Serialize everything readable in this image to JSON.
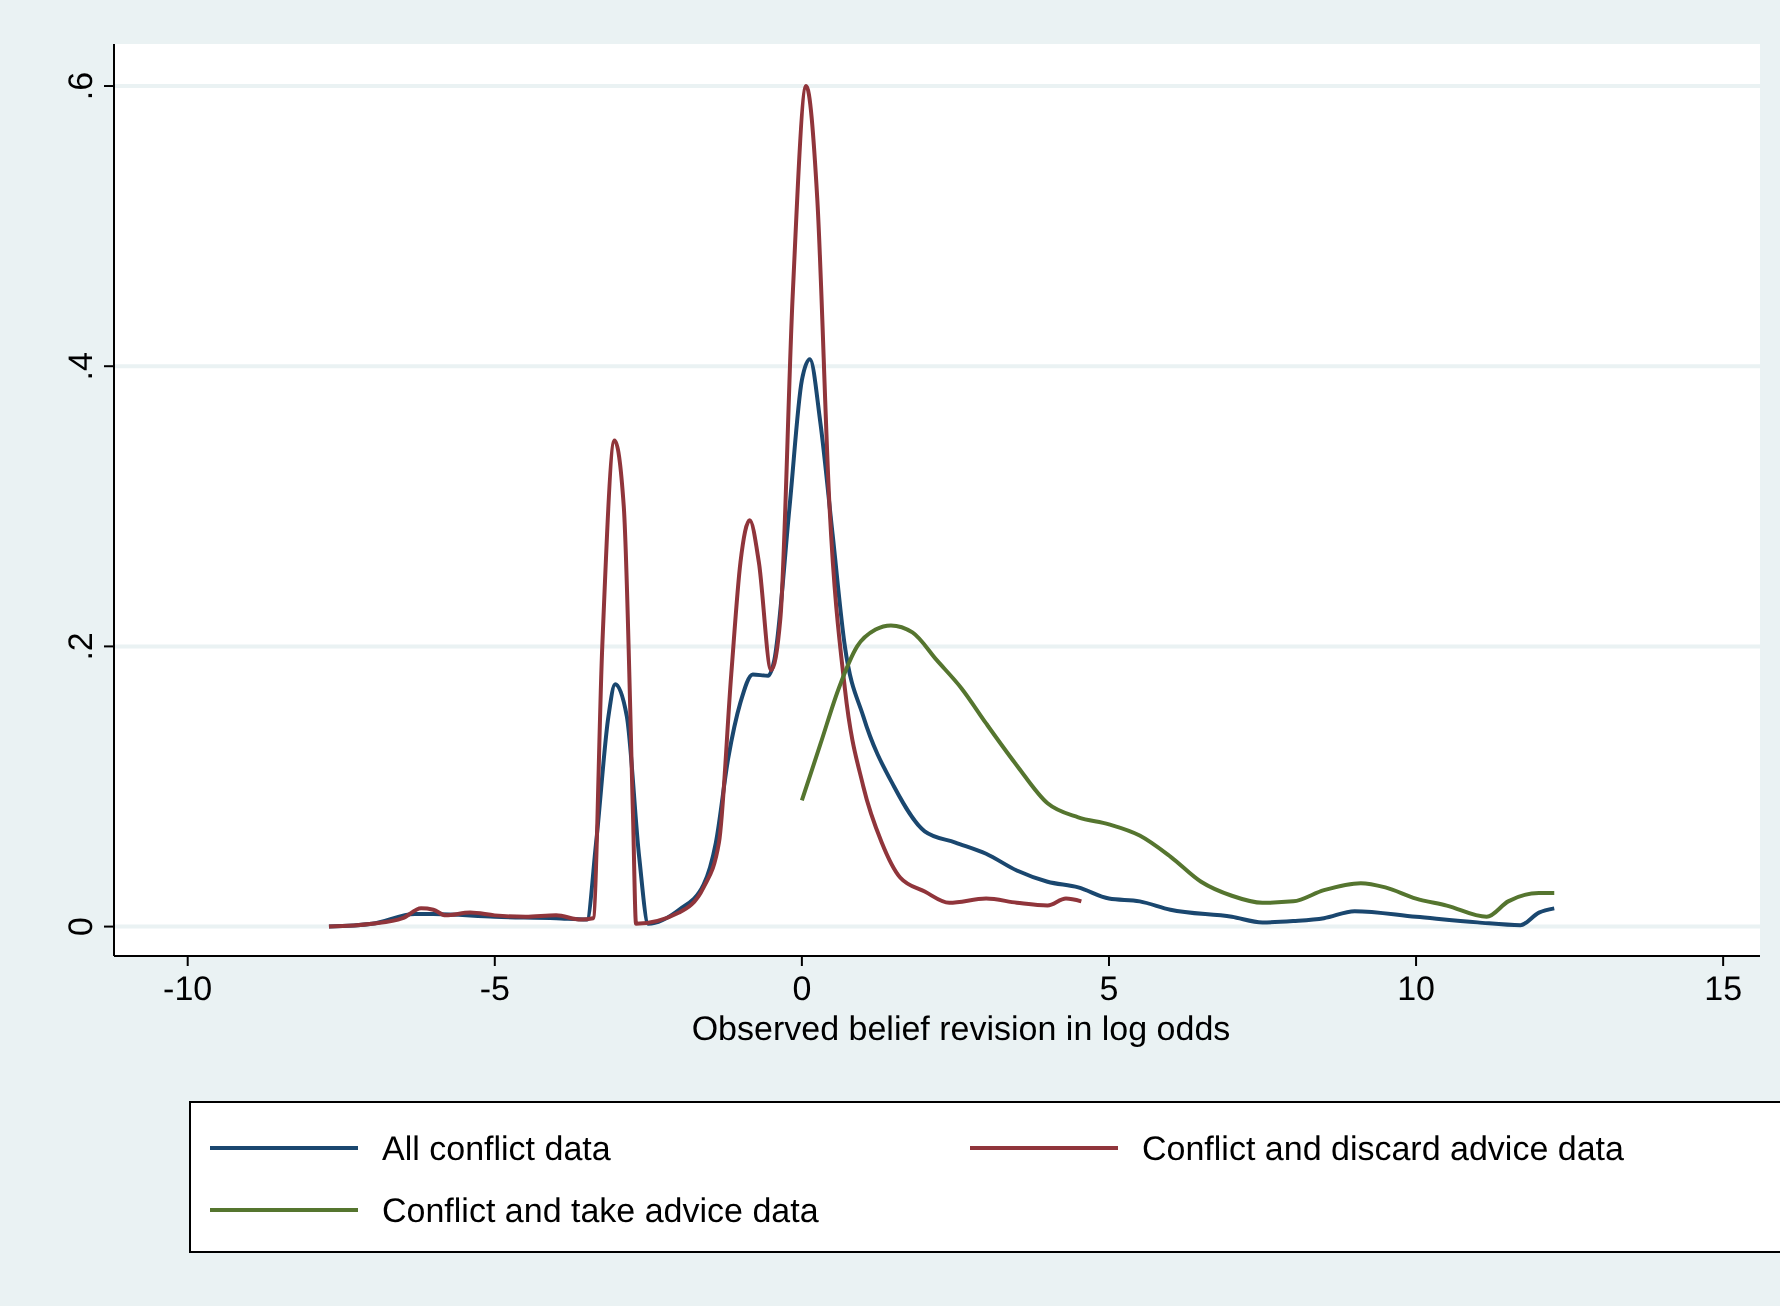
{
  "chart_data": {
    "type": "line",
    "xlabel": "Observed belief revision in log odds",
    "xlim": [
      -11.2,
      15.6
    ],
    "ylim": [
      -0.021,
      0.63
    ],
    "xticks": [
      -10,
      -5,
      0,
      5,
      10,
      15
    ],
    "yticks": [
      {
        "value": 0,
        "label": "0"
      },
      {
        "value": 0.2,
        "label": ".2"
      },
      {
        "value": 0.4,
        "label": ".4"
      },
      {
        "value": 0.6,
        "label": ".6"
      }
    ],
    "grid": "y",
    "legend": "bottom",
    "marker": "none",
    "line_style": "solid",
    "series": [
      {
        "name": "All conflict data",
        "color": "#1a476f",
        "x": [
          -7.7,
          -7,
          -6.3,
          -6,
          -5,
          -4,
          -3.5,
          -3.35,
          -3.15,
          -3.04,
          -2.85,
          -2.65,
          -2.5,
          -2,
          -1.6,
          -1.4,
          -1.2,
          -1,
          -0.8,
          -0.55,
          -0.45,
          -0.2,
          0,
          0.13,
          0.3,
          0.5,
          0.7,
          1,
          1.5,
          2,
          2.5,
          3,
          3.5,
          4,
          4.5,
          5,
          5.5,
          6,
          7,
          7.5,
          8,
          8.5,
          9,
          10,
          11,
          11.7,
          12,
          12.25
        ],
        "values": [
          0,
          0.002,
          0.009,
          0.009,
          0.007,
          0.006,
          0.005,
          0.06,
          0.15,
          0.173,
          0.15,
          0.05,
          0.002,
          0.012,
          0.03,
          0.06,
          0.12,
          0.16,
          0.18,
          0.179,
          0.19,
          0.3,
          0.39,
          0.405,
          0.36,
          0.28,
          0.2,
          0.15,
          0.1,
          0.068,
          0.06,
          0.052,
          0.04,
          0.032,
          0.028,
          0.02,
          0.018,
          0.012,
          0.007,
          0.003,
          0.004,
          0.006,
          0.011,
          0.007,
          0.003,
          0.001,
          0.01,
          0.013
        ]
      },
      {
        "name": "Conflict and discard advice data",
        "color": "#90353b",
        "x": [
          -7.7,
          -7,
          -6.5,
          -6.2,
          -6,
          -5.8,
          -5.4,
          -5,
          -4.5,
          -4,
          -3.6,
          -3.4,
          -3.25,
          -3.05,
          -2.9,
          -2.75,
          -2.7,
          -2,
          -1.6,
          -1.35,
          -1.15,
          -1,
          -0.85,
          -0.7,
          -0.5,
          -0.35,
          -0.15,
          0.07,
          0.25,
          0.45,
          0.7,
          1,
          1.3,
          1.6,
          2,
          2.4,
          3,
          3.5,
          4,
          4.3,
          4.55
        ],
        "values": [
          0,
          0.002,
          0.006,
          0.013,
          0.012,
          0.008,
          0.01,
          0.008,
          0.007,
          0.008,
          0.005,
          0.006,
          0.2,
          0.347,
          0.3,
          0.08,
          0.002,
          0.01,
          0.028,
          0.06,
          0.18,
          0.26,
          0.29,
          0.26,
          0.183,
          0.22,
          0.45,
          0.6,
          0.52,
          0.3,
          0.17,
          0.1,
          0.06,
          0.035,
          0.025,
          0.017,
          0.02,
          0.017,
          0.015,
          0.02,
          0.018
        ]
      },
      {
        "name": "Conflict and take advice data",
        "color": "#55752f",
        "x": [
          0,
          0.3,
          0.6,
          0.9,
          1.2,
          1.45,
          1.8,
          2.2,
          2.6,
          3,
          3.5,
          4,
          4.5,
          5,
          5.5,
          6,
          6.5,
          7,
          7.5,
          8,
          8.5,
          9.1,
          9.5,
          10,
          10.5,
          11.15,
          11.5,
          12,
          12.25
        ],
        "values": [
          0.09,
          0.13,
          0.17,
          0.2,
          0.212,
          0.215,
          0.21,
          0.19,
          0.17,
          0.145,
          0.115,
          0.088,
          0.078,
          0.073,
          0.065,
          0.05,
          0.032,
          0.022,
          0.017,
          0.018,
          0.026,
          0.031,
          0.028,
          0.02,
          0.015,
          0.007,
          0.018,
          0.024,
          0.024
        ]
      }
    ]
  }
}
